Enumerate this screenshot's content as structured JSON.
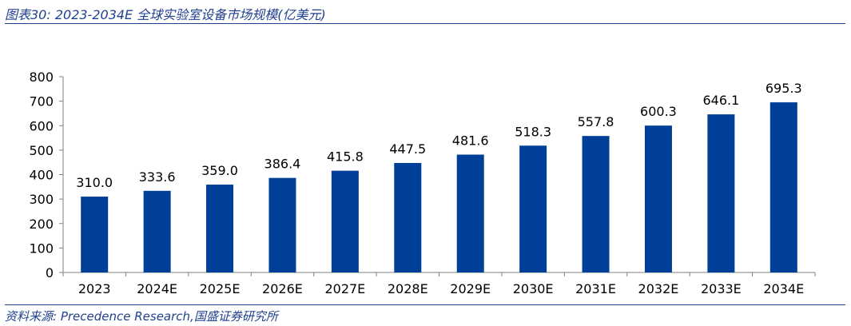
{
  "figure": {
    "title": "图表30:  2023-2034E 全球实验室设备市场规模(亿美元)",
    "source": "资料来源:  Precedence Research,国盛证券研究所"
  },
  "colors": {
    "bar": "#003f98",
    "rule": "#1f3f8f",
    "axis": "#808080"
  },
  "chart_data": {
    "type": "bar",
    "title": "2023-2034E 全球实验室设备市场规模(亿美元)",
    "xlabel": "",
    "ylabel": "",
    "categories": [
      "2023",
      "2024E",
      "2025E",
      "2026E",
      "2027E",
      "2028E",
      "2029E",
      "2030E",
      "2031E",
      "2032E",
      "2033E",
      "2034E"
    ],
    "series": [
      {
        "values": [
          310.0,
          333.6,
          359.0,
          386.4,
          415.8,
          447.5,
          481.6,
          518.3,
          557.8,
          600.3,
          646.1,
          695.3
        ]
      }
    ],
    "value_labels": [
      "310.0",
      "333.6",
      "359.0",
      "386.4",
      "415.8",
      "447.5",
      "481.6",
      "518.3",
      "557.8",
      "600.3",
      "646.1",
      "695.3"
    ],
    "ylim": [
      0,
      800
    ],
    "yticks": [
      0,
      100,
      200,
      300,
      400,
      500,
      600,
      700,
      800
    ],
    "grid": false,
    "legend": "none"
  }
}
